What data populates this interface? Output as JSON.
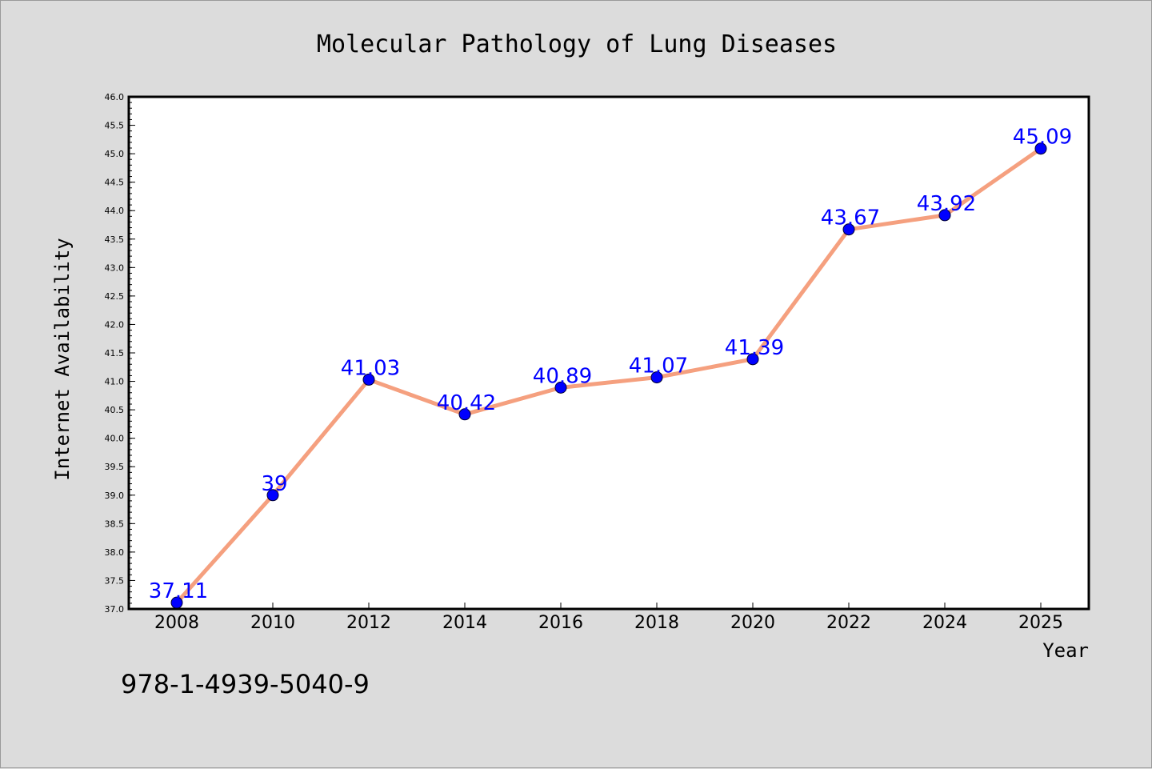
{
  "chart_data": {
    "type": "line",
    "title": "Molecular Pathology of Lung Diseases",
    "xlabel": "Year",
    "ylabel": "Internet Availability",
    "categories": [
      "2008",
      "2010",
      "2012",
      "2014",
      "2016",
      "2018",
      "2020",
      "2022",
      "2024",
      "2025"
    ],
    "values": [
      37.11,
      39,
      41.03,
      40.42,
      40.89,
      41.07,
      41.39,
      43.67,
      43.92,
      45.09
    ],
    "data_labels": [
      "37.11",
      "39",
      "41.03",
      "40.42",
      "40.89",
      "41.07",
      "41.39",
      "43.67",
      "43.92",
      "45.09"
    ],
    "yticks": [
      "37.0",
      "37.5",
      "38.0",
      "38.5",
      "39.0",
      "39.5",
      "40.0",
      "40.5",
      "41.0",
      "41.5",
      "42.0",
      "42.5",
      "43.0",
      "43.5",
      "44.0",
      "44.5",
      "45.0",
      "45.5",
      "46.0"
    ],
    "ylim": [
      37.0,
      46.0
    ],
    "grid": false,
    "legend": "none",
    "line_color": "#f5a07f",
    "marker_color": "#0000ff",
    "label_color": "#0000ff"
  },
  "annotation": "978-1-4939-5040-9"
}
